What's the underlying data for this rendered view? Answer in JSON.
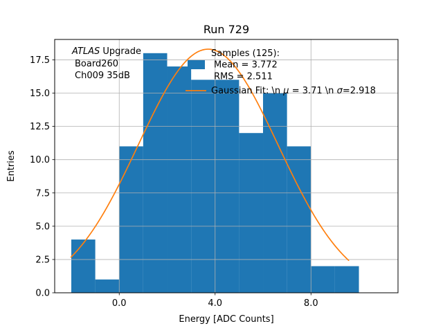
{
  "title": "Run 729",
  "axes": {
    "xlabel": "Energy [ADC Counts]",
    "ylabel": "Entries"
  },
  "annotation": {
    "line1_italic": "ATLAS",
    "line1_rest": " Upgrade",
    "line2": "Board260",
    "line3": "Ch009 35dB"
  },
  "legend": {
    "samples_title": "Samples (125):",
    "samples_mean": "Mean = 3.772",
    "samples_rms": "RMS = 2.511",
    "gaussian_prefix": "Gaussian Fit: \\n ",
    "gaussian_mu_symbol": "μ",
    "gaussian_mid": " = 3.71 \\n ",
    "gaussian_sigma_symbol": "σ",
    "gaussian_suffix": "=2.918",
    "samples_swatch_color": "#1f77b4",
    "gaussian_line_color": "#ff7f0e"
  },
  "chart_data": {
    "type": "bar",
    "subtype": "histogram-with-gaussian-overlay",
    "title": "Run 729",
    "xlabel": "Energy [ADC Counts]",
    "ylabel": "Entries",
    "bin_edges": [
      -2,
      -1,
      0,
      1,
      2,
      3,
      4,
      5,
      6,
      7,
      8,
      9,
      10
    ],
    "counts": [
      4,
      1,
      11,
      18,
      17,
      16,
      16,
      12,
      15,
      11,
      2,
      2
    ],
    "total_samples": 125,
    "mean": 3.772,
    "rms": 2.511,
    "bar_color": "#1f77b4",
    "overlay_series": {
      "name": "Gaussian Fit",
      "type": "line",
      "color": "#ff7f0e",
      "mu": 3.71,
      "sigma": 2.918,
      "amplitude": 18.3,
      "x_range": [
        -2.01,
        9.6
      ]
    },
    "xlim": [
      -2.693,
      11.631
    ],
    "ylim": [
      0,
      19.03
    ],
    "xticks": [
      0.0,
      4.0,
      8.0
    ],
    "xtick_labels": [
      "0.0",
      "4.0",
      "8.0"
    ],
    "yticks": [
      0.0,
      2.5,
      5.0,
      7.5,
      10.0,
      12.5,
      15.0,
      17.5
    ],
    "ytick_labels": [
      "0.0",
      "2.5",
      "5.0",
      "7.5",
      "10.0",
      "12.5",
      "15.0",
      "17.5"
    ],
    "grid": true,
    "grid_color": "#b0b0b0",
    "grid_above_bars": true,
    "legend_position": "upper-right-frameless"
  }
}
